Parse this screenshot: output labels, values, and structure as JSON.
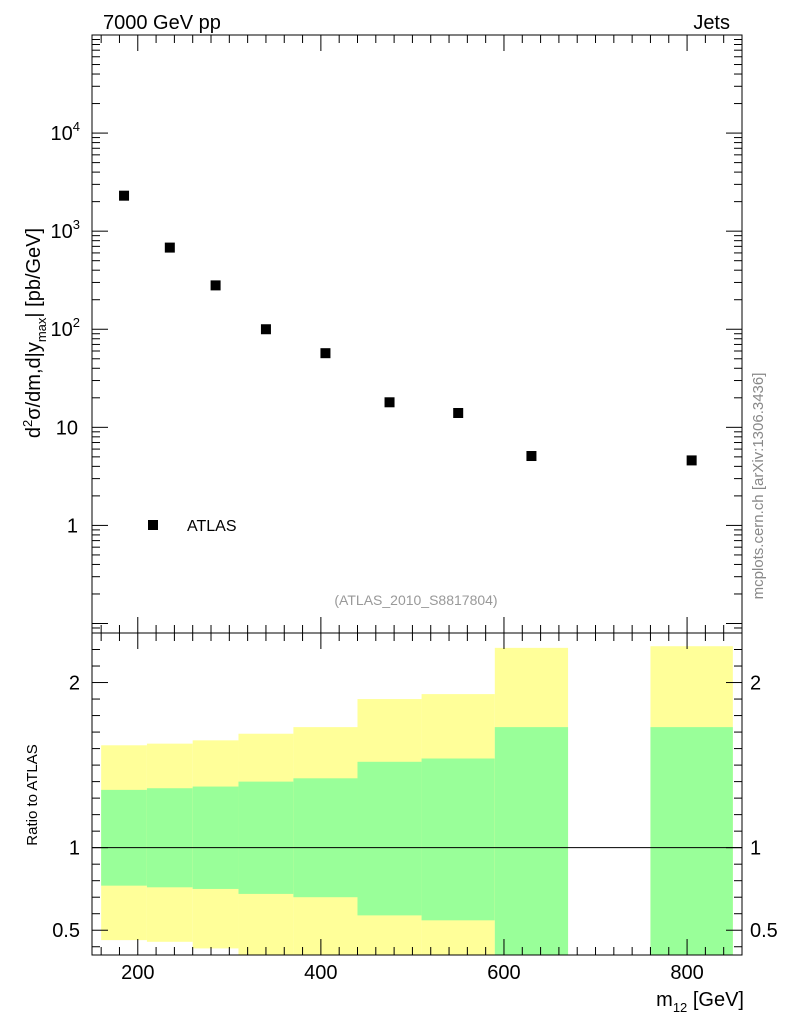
{
  "chart_data": [
    {
      "type": "scatter",
      "title_left": "7000 GeV pp",
      "title_right": "Jets",
      "ylabel": {
        "base": "d",
        "sup": "2",
        "mid": "σ/dm,d|y",
        "sub": "max",
        "tail": "| [pb/GeV]"
      },
      "yscale": "log",
      "ylim": [
        0.08,
        100000
      ],
      "xlim": [
        150,
        860
      ],
      "yticks": [
        {
          "value": 1,
          "label": "1"
        },
        {
          "value": 10,
          "label": "10"
        },
        {
          "value": 100,
          "base": "10",
          "exp": "2"
        },
        {
          "value": 1000,
          "base": "10",
          "exp": "3"
        },
        {
          "value": 10000,
          "base": "10",
          "exp": "4"
        }
      ],
      "series": [
        {
          "name": "ATLAS",
          "marker": "square",
          "color": "#000000",
          "x": [
            185,
            235,
            285,
            340,
            405,
            475,
            550,
            630,
            805
          ],
          "y": [
            2300,
            680,
            280,
            100,
            57,
            18,
            14,
            5.1,
            4.6
          ]
        }
      ],
      "legend": {
        "label": "ATLAS",
        "position": "bottom-left"
      },
      "annotation": "(ATLAS_2010_S8817804)"
    },
    {
      "type": "area",
      "ylabel": "Ratio to ATLAS",
      "xlabel": {
        "base": "m",
        "sub": "12",
        "tail": " [GeV]"
      },
      "xlim": [
        150,
        860
      ],
      "ylim": [
        0.35,
        2.3
      ],
      "xticks": [
        200,
        400,
        600,
        800
      ],
      "yticks": [
        {
          "value": 0.5,
          "label": "0.5"
        },
        {
          "value": 1,
          "label": "1"
        },
        {
          "value": 2,
          "label": "2"
        }
      ],
      "reference_line": 1,
      "bins": [
        {
          "xlo": 160,
          "xhi": 210,
          "stat": [
            0.77,
            1.35
          ],
          "total": [
            0.44,
            1.62
          ]
        },
        {
          "xlo": 210,
          "xhi": 260,
          "stat": [
            0.76,
            1.36
          ],
          "total": [
            0.43,
            1.63
          ]
        },
        {
          "xlo": 260,
          "xhi": 310,
          "stat": [
            0.75,
            1.37
          ],
          "total": [
            0.39,
            1.65
          ]
        },
        {
          "xlo": 310,
          "xhi": 370,
          "stat": [
            0.72,
            1.4
          ],
          "total": [
            0.3,
            1.69
          ]
        },
        {
          "xlo": 370,
          "xhi": 440,
          "stat": [
            0.7,
            1.42
          ],
          "total": [
            0.3,
            1.73
          ]
        },
        {
          "xlo": 440,
          "xhi": 510,
          "stat": [
            0.59,
            1.52
          ],
          "total": [
            0.3,
            1.9
          ]
        },
        {
          "xlo": 510,
          "xhi": 590,
          "stat": [
            0.56,
            1.54
          ],
          "total": [
            0.3,
            1.93
          ]
        },
        {
          "xlo": 590,
          "xhi": 670,
          "stat": [
            0.3,
            1.73
          ],
          "total": [
            0.3,
            2.21
          ]
        },
        {
          "xlo": 760,
          "xhi": 850,
          "stat": [
            0.3,
            1.73
          ],
          "total": [
            0.3,
            2.22
          ]
        }
      ],
      "colors": {
        "stat": "#99ff99",
        "total": "#ffff99"
      }
    }
  ],
  "watermark": "mcplots.cern.ch [arXiv:1306.3436]"
}
